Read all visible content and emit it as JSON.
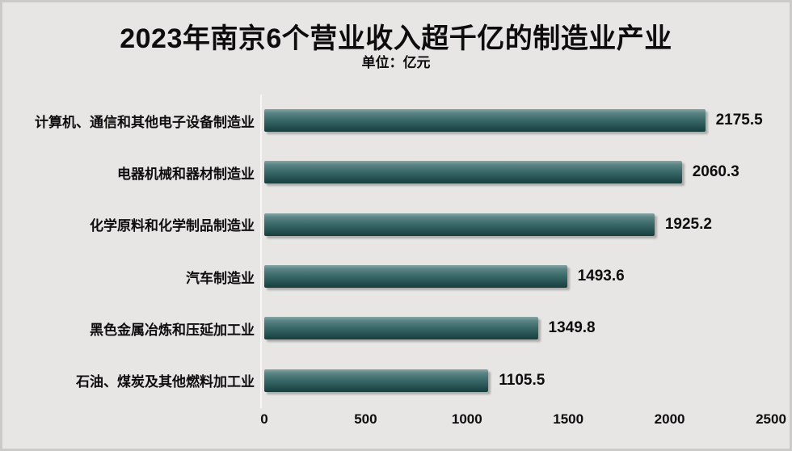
{
  "page": {
    "background_color": "#e7e6e4",
    "border_color": "#cbcac8"
  },
  "chart_data": {
    "type": "bar",
    "orientation": "horizontal",
    "title": "2023年南京6个营业收入超千亿的制造业产业",
    "unit_label": "单位：亿元",
    "categories": [
      "计算机、通信和其他电子设备制造业",
      "电器机械和器材制造业",
      "化学原料和化学制品制造业",
      "汽车制造业",
      "黑色金属冶炼和压延加工业",
      "石油、煤炭及其他燃料加工业"
    ],
    "values": [
      2175.5,
      2060.3,
      1925.2,
      1493.6,
      1349.8,
      1105.5
    ],
    "value_labels": [
      "2175.5",
      "2060.3",
      "1925.2",
      "1493.6",
      "1349.8",
      "1105.5"
    ],
    "x_ticks": [
      "0",
      "500",
      "1000",
      "1500",
      "2000",
      "2500"
    ],
    "x_tick_values": [
      0,
      500,
      1000,
      1500,
      2000,
      2500
    ],
    "xlim": [
      0,
      2500
    ],
    "xlabel": "",
    "ylabel": "",
    "legend": "none",
    "grid": "off",
    "bar_gradient": {
      "top": "#89a5a5",
      "upper": "#5d8585",
      "mid": "#3d6b6b",
      "lower": "#285353",
      "bottom": "#163d3d"
    },
    "label_color": "#0d0d0d",
    "axis_line_color": "#f7f7f5"
  }
}
